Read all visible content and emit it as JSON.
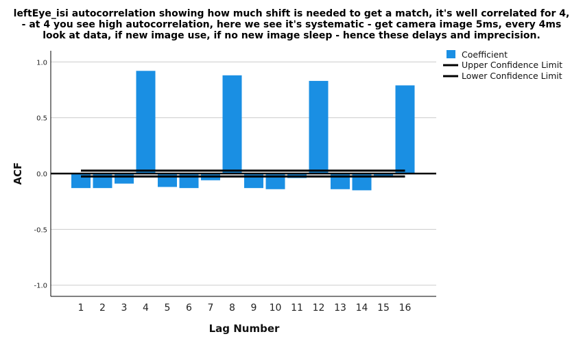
{
  "chart_data": {
    "type": "bar",
    "title_lines": [
      "leftEye_isi autocorrelation showing how much shift is needed to get a match, it's well correlated for 4,",
      "- at 4 you see high autocorrelation, here we see it's systematic - get camera image 5ms, every 4ms",
      "look at data, if new image use, if no new image sleep - hence these delays and imprecision."
    ],
    "xlabel": "Lag Number",
    "ylabel": "ACF",
    "categories": [
      "1",
      "2",
      "3",
      "4",
      "5",
      "6",
      "7",
      "8",
      "9",
      "10",
      "11",
      "12",
      "13",
      "14",
      "15",
      "16"
    ],
    "series": [
      {
        "name": "Coefficient",
        "values": [
          -0.13,
          -0.13,
          -0.09,
          0.92,
          -0.12,
          -0.13,
          -0.06,
          0.88,
          -0.13,
          -0.14,
          -0.04,
          0.83,
          -0.14,
          -0.15,
          -0.03,
          0.79
        ]
      }
    ],
    "upper_confidence_limit": [
      0.026,
      0.026,
      0.026,
      0.026,
      0.026,
      0.026,
      0.026,
      0.026,
      0.026,
      0.026,
      0.026,
      0.026,
      0.026,
      0.026,
      0.026,
      0.026
    ],
    "lower_confidence_limit": [
      -0.026,
      -0.026,
      -0.026,
      -0.026,
      -0.026,
      -0.026,
      -0.026,
      -0.026,
      -0.026,
      -0.026,
      -0.026,
      -0.026,
      -0.026,
      -0.026,
      -0.026,
      -0.026
    ],
    "ylim": [
      -1.1,
      1.1
    ],
    "yticks": [
      1.0,
      0.5,
      0.0,
      -0.5,
      -1.0
    ],
    "ytick_labels": [
      "1.0",
      "0.5",
      "0.0",
      "-0.5",
      "-1.0"
    ],
    "grid": true,
    "legend": {
      "position": "top-right",
      "entries": [
        "Coefficient",
        "Upper Confidence Limit",
        "Lower Confidence Limit"
      ]
    },
    "colors": {
      "bar": "#1a8fe3",
      "limits": "#000000",
      "grid": "#cccccc"
    }
  }
}
